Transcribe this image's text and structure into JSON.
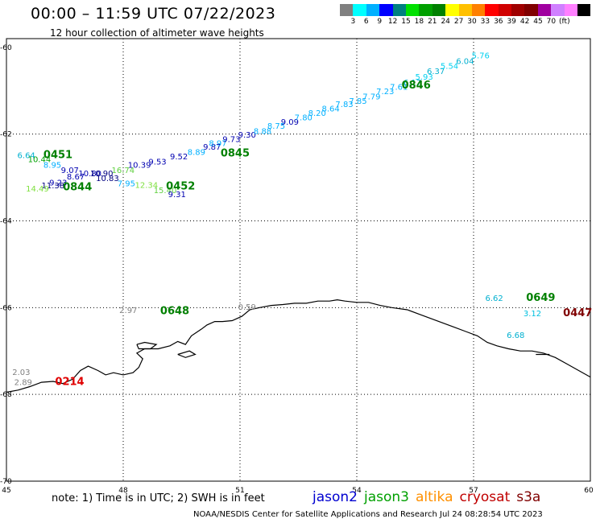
{
  "title": "00:00 – 11:59 UTC 07/22/2023",
  "subtitle": "12 hour collection of altimeter wave heights",
  "colorbar": {
    "colors": [
      "#808080",
      "#00ffff",
      "#00b0ff",
      "#0000ff",
      "#008080",
      "#00e000",
      "#00a000",
      "#008000",
      "#ffff00",
      "#ffc000",
      "#ff8000",
      "#ff0000",
      "#d00000",
      "#a00000",
      "#800000",
      "#a000a0",
      "#d080ff",
      "#ff80ff",
      "#000000"
    ],
    "labels": [
      "3",
      "6",
      "9",
      "12",
      "15",
      "18",
      "21",
      "24",
      "27",
      "30",
      "33",
      "36",
      "39",
      "42",
      "45",
      "70",
      "(ft)"
    ]
  },
  "axes": {
    "lon_ticks": [
      "45",
      "48",
      "51",
      "54",
      "57",
      "60"
    ],
    "lat_ticks": [
      "-60",
      "-62",
      "-64",
      "-66",
      "-68",
      "-70"
    ]
  },
  "observations": [
    {
      "v": "6.64",
      "c": "#00b0d0",
      "lon": 45.28,
      "lat": -62.55
    },
    {
      "v": "10.44",
      "c": "#00a000",
      "lon": 45.55,
      "lat": -62.65
    },
    {
      "v": "8.95",
      "c": "#00b0ff",
      "lon": 45.95,
      "lat": -62.78
    },
    {
      "v": "9.07",
      "c": "#0000b0",
      "lon": 46.4,
      "lat": -62.9
    },
    {
      "v": "9.23",
      "c": "#0000b0",
      "lon": 46.1,
      "lat": -63.18
    },
    {
      "v": "11.38",
      "c": "#000080",
      "lon": 45.9,
      "lat": -63.25
    },
    {
      "v": "14.49",
      "c": "#80e040",
      "lon": 45.5,
      "lat": -63.32
    },
    {
      "v": "10.80",
      "c": "#0000b0",
      "lon": 46.85,
      "lat": -62.97
    },
    {
      "v": "8.67",
      "c": "#0000b0",
      "lon": 46.55,
      "lat": -63.05
    },
    {
      "v": "10.90",
      "c": "#000080",
      "lon": 47.15,
      "lat": -62.97
    },
    {
      "v": "10.83",
      "c": "#000080",
      "lon": 47.3,
      "lat": -63.08
    },
    {
      "v": "16.74",
      "c": "#60d040",
      "lon": 47.7,
      "lat": -62.9
    },
    {
      "v": "7.95",
      "c": "#00b0ff",
      "lon": 47.85,
      "lat": -63.2
    },
    {
      "v": "10.39",
      "c": "#0000b0",
      "lon": 48.12,
      "lat": -62.78
    },
    {
      "v": "12.34",
      "c": "#80e040",
      "lon": 48.3,
      "lat": -63.24
    },
    {
      "v": "9.53",
      "c": "#0000b0",
      "lon": 48.65,
      "lat": -62.7
    },
    {
      "v": "15.40",
      "c": "#60d040",
      "lon": 48.78,
      "lat": -63.36
    },
    {
      "v": "9.31",
      "c": "#0000b0",
      "lon": 49.15,
      "lat": -63.45
    },
    {
      "v": "9.52",
      "c": "#0000b0",
      "lon": 49.2,
      "lat": -62.58
    },
    {
      "v": "8.89",
      "c": "#00b0ff",
      "lon": 49.65,
      "lat": -62.48
    },
    {
      "v": "9.87",
      "c": "#0000b0",
      "lon": 50.05,
      "lat": -62.36
    },
    {
      "v": "8.97",
      "c": "#00b0ff",
      "lon": 50.2,
      "lat": -62.28
    },
    {
      "v": "9.73",
      "c": "#0000b0",
      "lon": 50.55,
      "lat": -62.18
    },
    {
      "v": "9.30",
      "c": "#0000b0",
      "lon": 50.95,
      "lat": -62.08
    },
    {
      "v": "8.88",
      "c": "#00b0ff",
      "lon": 51.35,
      "lat": -62.0
    },
    {
      "v": "8.75",
      "c": "#00b0ff",
      "lon": 51.7,
      "lat": -61.88
    },
    {
      "v": "9.09",
      "c": "#0000b0",
      "lon": 52.05,
      "lat": -61.78
    },
    {
      "v": "7.80",
      "c": "#00b0ff",
      "lon": 52.4,
      "lat": -61.68
    },
    {
      "v": "8.20",
      "c": "#00b0ff",
      "lon": 52.75,
      "lat": -61.58
    },
    {
      "v": "8.64",
      "c": "#00b0ff",
      "lon": 53.1,
      "lat": -61.48
    },
    {
      "v": "7.83",
      "c": "#00b0ff",
      "lon": 53.45,
      "lat": -61.38
    },
    {
      "v": "7.85",
      "c": "#00b0ff",
      "lon": 53.8,
      "lat": -61.3
    },
    {
      "v": "7.79",
      "c": "#00b0ff",
      "lon": 54.15,
      "lat": -61.2
    },
    {
      "v": "7.23",
      "c": "#00b0ff",
      "lon": 54.5,
      "lat": -61.08
    },
    {
      "v": "7.61",
      "c": "#00b0ff",
      "lon": 54.85,
      "lat": -60.98
    },
    {
      "v": "6.17",
      "c": "#00b0d0",
      "lon": 55.2,
      "lat": -60.88
    },
    {
      "v": "5.93",
      "c": "#00d0f0",
      "lon": 55.5,
      "lat": -60.75
    },
    {
      "v": "6.37",
      "c": "#00b0d0",
      "lon": 55.8,
      "lat": -60.62
    },
    {
      "v": "5.54",
      "c": "#00d0f0",
      "lon": 56.15,
      "lat": -60.5
    },
    {
      "v": "6.04",
      "c": "#00b0d0",
      "lon": 56.55,
      "lat": -60.38
    },
    {
      "v": "5.76",
      "c": "#00d0f0",
      "lon": 56.95,
      "lat": -60.25
    },
    {
      "v": "6.62",
      "c": "#00b0d0",
      "lon": 57.3,
      "lat": -65.85
    },
    {
      "v": "3.12",
      "c": "#00c0e0",
      "lon": 58.28,
      "lat": -66.2
    },
    {
      "v": "6.68",
      "c": "#00b0d0",
      "lon": 57.85,
      "lat": -66.7
    },
    {
      "v": "2.97",
      "c": "#808080",
      "lon": 47.9,
      "lat": -66.12
    },
    {
      "v": "0.59",
      "c": "#808080",
      "lon": 50.95,
      "lat": -66.05
    },
    {
      "v": "2.03",
      "c": "#808080",
      "lon": 45.15,
      "lat": -67.55
    },
    {
      "v": "2.89",
      "c": "#808080",
      "lon": 45.2,
      "lat": -67.78
    }
  ],
  "time_labels": [
    {
      "t": "0451",
      "c": "#008000",
      "lon": 45.95,
      "lat": -62.55
    },
    {
      "t": "0844",
      "c": "#008000",
      "lon": 46.45,
      "lat": -63.3
    },
    {
      "t": "0845",
      "c": "#008000",
      "lon": 50.5,
      "lat": -62.52
    },
    {
      "t": "0452",
      "c": "#008000",
      "lon": 49.1,
      "lat": -63.28
    },
    {
      "t": "0846",
      "c": "#008000",
      "lon": 55.15,
      "lat": -60.95
    },
    {
      "t": "0648",
      "c": "#008000",
      "lon": 48.95,
      "lat": -66.15
    },
    {
      "t": "0649",
      "c": "#008000",
      "lon": 58.35,
      "lat": -65.85
    },
    {
      "t": "0447",
      "c": "#800000",
      "lon": 59.3,
      "lat": -66.2
    },
    {
      "t": "0214",
      "c": "#e00000",
      "lon": 46.25,
      "lat": -67.78
    }
  ],
  "coastline": [
    [
      45,
      -67.95
    ],
    [
      45.3,
      -67.9
    ],
    [
      45.6,
      -67.82
    ],
    [
      45.9,
      -67.72
    ],
    [
      46.2,
      -67.7
    ],
    [
      46.45,
      -67.75
    ],
    [
      46.7,
      -67.65
    ],
    [
      46.9,
      -67.45
    ],
    [
      47.1,
      -67.35
    ],
    [
      47.35,
      -67.45
    ],
    [
      47.55,
      -67.55
    ],
    [
      47.75,
      -67.5
    ],
    [
      48,
      -67.55
    ],
    [
      48.25,
      -67.5
    ],
    [
      48.4,
      -67.38
    ],
    [
      48.5,
      -67.18
    ],
    [
      48.35,
      -67.05
    ],
    [
      48.55,
      -66.95
    ],
    [
      48.9,
      -66.95
    ],
    [
      49.2,
      -66.88
    ],
    [
      49.4,
      -66.78
    ],
    [
      49.6,
      -66.85
    ],
    [
      49.75,
      -66.65
    ],
    [
      50,
      -66.5
    ],
    [
      50.15,
      -66.4
    ],
    [
      50.35,
      -66.32
    ],
    [
      50.55,
      -66.32
    ],
    [
      50.8,
      -66.3
    ],
    [
      51.05,
      -66.2
    ],
    [
      51.25,
      -66.05
    ],
    [
      51.5,
      -66.0
    ],
    [
      51.8,
      -65.95
    ],
    [
      52.1,
      -65.93
    ],
    [
      52.4,
      -65.9
    ],
    [
      52.7,
      -65.9
    ],
    [
      53,
      -65.85
    ],
    [
      53.3,
      -65.85
    ],
    [
      53.5,
      -65.82
    ],
    [
      53.7,
      -65.85
    ],
    [
      54,
      -65.88
    ],
    [
      54.3,
      -65.88
    ],
    [
      54.6,
      -65.95
    ],
    [
      54.9,
      -66.0
    ],
    [
      55.3,
      -66.05
    ],
    [
      55.6,
      -66.15
    ],
    [
      55.9,
      -66.25
    ],
    [
      56.2,
      -66.35
    ],
    [
      56.5,
      -66.45
    ],
    [
      56.8,
      -66.55
    ],
    [
      57.1,
      -66.65
    ],
    [
      57.35,
      -66.8
    ],
    [
      57.6,
      -66.88
    ],
    [
      57.9,
      -66.95
    ],
    [
      58.2,
      -67.0
    ],
    [
      58.5,
      -67.0
    ],
    [
      58.8,
      -67.05
    ],
    [
      59.1,
      -67.15
    ],
    [
      59.4,
      -67.3
    ],
    [
      59.7,
      -67.45
    ],
    [
      60,
      -67.6
    ]
  ],
  "islands": [
    [
      [
        48.35,
        -66.85
      ],
      [
        48.55,
        -66.8
      ],
      [
        48.85,
        -66.85
      ],
      [
        48.7,
        -66.95
      ],
      [
        48.4,
        -66.95
      ],
      [
        48.35,
        -66.85
      ]
    ],
    [
      [
        49.4,
        -67.08
      ],
      [
        49.7,
        -67.0
      ],
      [
        49.85,
        -67.08
      ],
      [
        49.6,
        -67.15
      ],
      [
        49.4,
        -67.08
      ]
    ],
    [
      [
        58.6,
        -67.08
      ],
      [
        58.95,
        -67.08
      ]
    ]
  ],
  "note": "note:  1) Time is in UTC;  2) SWH is in feet",
  "legend": [
    {
      "name": "jason2",
      "color": "#0000d0"
    },
    {
      "name": "jason3",
      "color": "#00a000"
    },
    {
      "name": "altika",
      "color": "#ff9000"
    },
    {
      "name": "cryosat",
      "color": "#c00000"
    },
    {
      "name": "s3a",
      "color": "#800000"
    }
  ],
  "credit": "NOAA/NESDIS Center for Satellite Applications and Research    Jul 24 08:28:54 UTC 2023"
}
